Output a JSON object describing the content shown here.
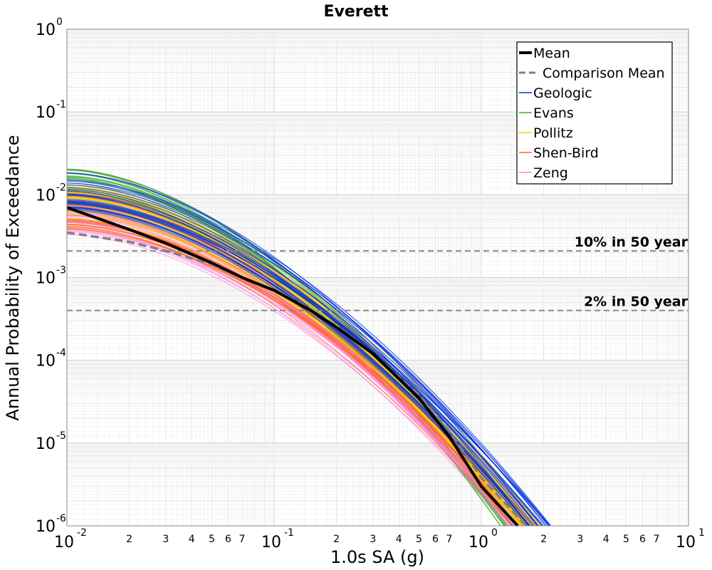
{
  "chart_data": {
    "type": "line",
    "title": "Everett",
    "xlabel": "1.0s SA (g)",
    "ylabel": "Annual Probability of Exceedance",
    "xscale": "log",
    "yscale": "log",
    "xlim": [
      0.01,
      10
    ],
    "ylim": [
      1e-06,
      1
    ],
    "grid": true,
    "legend_position": "top-right",
    "x_major_ticks": [
      {
        "base": "10",
        "exp": "-2"
      },
      {
        "base": "10",
        "exp": "-1"
      },
      {
        "base": "10",
        "exp": "0"
      },
      {
        "base": "10",
        "exp": "1"
      }
    ],
    "y_major_ticks": [
      {
        "base": "10",
        "exp": "-6"
      },
      {
        "base": "10",
        "exp": "-5"
      },
      {
        "base": "10",
        "exp": "-4"
      },
      {
        "base": "10",
        "exp": "-3"
      },
      {
        "base": "10",
        "exp": "-2"
      },
      {
        "base": "10",
        "exp": "-1"
      },
      {
        "base": "10",
        "exp": "0"
      }
    ],
    "x_minor_tick_labels": [
      "2",
      "3",
      "4",
      "5",
      "6",
      "7"
    ],
    "reference_lines": [
      {
        "label": "10% in 50 year",
        "y": 0.0021
      },
      {
        "label": "2% in 50 year",
        "y": 0.0004
      }
    ],
    "series": [
      {
        "name": "Mean",
        "color": "#000000",
        "style": "solid",
        "x": [
          0.01,
          0.02,
          0.03,
          0.05,
          0.07,
          0.1,
          0.15,
          0.2,
          0.3,
          0.5,
          0.7,
          1.0,
          1.5
        ],
        "y": [
          0.007,
          0.0038,
          0.0026,
          0.0015,
          0.001,
          0.0007,
          0.0004,
          0.00025,
          0.00012,
          3.5e-05,
          1.2e-05,
          3e-06,
          1e-06
        ]
      },
      {
        "name": "Comparison Mean",
        "color": "#808080",
        "style": "dashed",
        "x": [
          0.01,
          0.02,
          0.03,
          0.05,
          0.07,
          0.1,
          0.15,
          0.2,
          0.3,
          0.5,
          0.7,
          1.0,
          1.65
        ],
        "y": [
          0.0035,
          0.0027,
          0.0021,
          0.00145,
          0.001,
          0.0007,
          0.00042,
          0.00026,
          0.00012,
          3.8e-05,
          1.4e-05,
          3.8e-06,
          1e-06
        ]
      },
      {
        "name": "Geologic",
        "color": "#0033dd",
        "style": "bundle",
        "x_end": 1.9,
        "y_start": 0.011
      },
      {
        "name": "Evans",
        "color": "#44aa33",
        "style": "bundle",
        "x_end": 1.4,
        "y_start": 0.013
      },
      {
        "name": "Pollitz",
        "color": "#ffcc00",
        "style": "bundle",
        "x_end": 1.7,
        "y_start": 0.008
      },
      {
        "name": "Shen-Bird",
        "color": "#ff6633",
        "style": "bundle",
        "x_end": 1.6,
        "y_start": 0.0065
      },
      {
        "name": "Zeng",
        "color": "#ff88dd",
        "style": "bundle",
        "x_end": 1.5,
        "y_start": 0.0055
      }
    ]
  }
}
